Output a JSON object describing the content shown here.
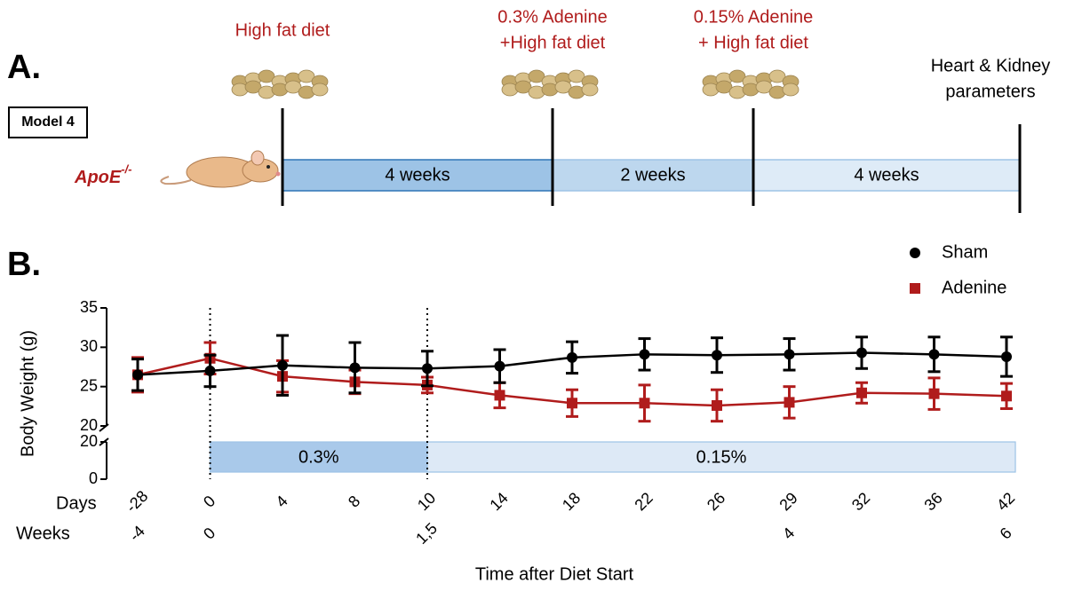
{
  "panel_a": {
    "label": "A.",
    "model": "Model 4",
    "strain": "ApoE",
    "strain_sup": "-/-",
    "diets": [
      {
        "lines": [
          "High fat diet"
        ]
      },
      {
        "lines": [
          "0.3% Adenine",
          "+High fat diet"
        ]
      },
      {
        "lines": [
          "0.15% Adenine",
          "+ High fat diet"
        ]
      }
    ],
    "end_label": [
      "Heart & Kidney",
      "parameters"
    ],
    "periods": [
      "4 weeks",
      "2 weeks",
      "4 weeks"
    ]
  },
  "chart_data": {
    "type": "line",
    "label": "B.",
    "y_label": "Body Weight (g)",
    "x_label": "Time after Diet Start",
    "row_titles": [
      "Days",
      "Weeks"
    ],
    "categories": [
      "-28",
      "0",
      "4",
      "8",
      "10",
      "14",
      "18",
      "22",
      "26",
      "29",
      "32",
      "36",
      "42"
    ],
    "weeks": [
      "-4",
      "0",
      null,
      null,
      "1,5",
      null,
      null,
      null,
      null,
      "4",
      null,
      null,
      "6"
    ],
    "ylim": [
      20,
      35
    ],
    "yticks": [
      20,
      25,
      30,
      35
    ],
    "ylim_lower": [
      0,
      20
    ],
    "yticks_lower": [
      0,
      20
    ],
    "legend": "top-right",
    "series": [
      {
        "name": "Sham",
        "color": "#000000",
        "marker": "circle",
        "values": [
          26.5,
          27.0,
          27.7,
          27.4,
          27.3,
          27.6,
          28.7,
          29.1,
          29.0,
          29.1,
          29.3,
          29.1,
          28.8
        ],
        "errors": [
          2.0,
          2.0,
          3.8,
          3.2,
          2.2,
          2.1,
          2.0,
          2.0,
          2.2,
          2.0,
          2.0,
          2.2,
          2.5
        ]
      },
      {
        "name": "Adenine",
        "color": "#b01c1c",
        "marker": "square",
        "values": [
          26.5,
          28.6,
          26.3,
          25.6,
          25.2,
          23.9,
          22.9,
          22.9,
          22.6,
          23.0,
          24.2,
          24.1,
          23.8
        ],
        "errors": [
          2.2,
          2.0,
          2.0,
          1.5,
          1.0,
          1.6,
          1.7,
          2.3,
          2.0,
          2.0,
          1.3,
          2.0,
          1.6
        ]
      }
    ],
    "diet_bands": [
      {
        "label": "0.3%",
        "start": "0",
        "end": "10",
        "color": "#a9c9ea"
      },
      {
        "label": "0.15%",
        "start": "10",
        "end": "42",
        "color": "#dde9f6"
      }
    ]
  }
}
